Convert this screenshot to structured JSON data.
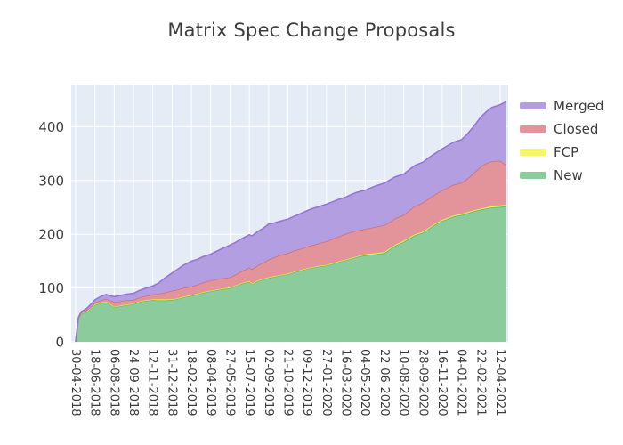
{
  "title": "Matrix Spec Change Proposals",
  "legend": {
    "position": "right",
    "items": [
      {
        "label": "Merged",
        "color": "#b29ee0",
        "line_color": "#9377d6"
      },
      {
        "label": "Closed",
        "color": "#e2949a",
        "line_color": "#d0707a"
      },
      {
        "label": "FCP",
        "color": "#f6f66b",
        "line_color": "#e8e838"
      },
      {
        "label": "New",
        "color": "#8bcb9c",
        "line_color": "#57b87b"
      }
    ]
  },
  "chart_data": {
    "type": "area",
    "stacked": true,
    "title": "Matrix Spec Change Proposals",
    "xlabel": "",
    "ylabel": "",
    "grid": true,
    "plot_bg": "#e5ecf6",
    "grid_color": "#ffffff",
    "tick_color": "#3b3b3b",
    "legend_position": "right",
    "y_ticks": [
      0,
      100,
      200,
      300,
      400
    ],
    "y_range": [
      0,
      478
    ],
    "x_tick_rotation": 90,
    "x_tick_labels": [
      "30-04-2018",
      "18-06-2018",
      "06-08-2018",
      "24-09-2018",
      "12-11-2018",
      "31-12-2018",
      "18-02-2019",
      "08-04-2019",
      "27-05-2019",
      "15-07-2019",
      "02-09-2019",
      "21-10-2019",
      "09-12-2019",
      "27-01-2020",
      "16-03-2020",
      "04-05-2020",
      "22-06-2020",
      "10-08-2020",
      "28-09-2020",
      "16-11-2020",
      "04-01-2021",
      "22-02-2021",
      "12-04-2021"
    ],
    "x": [
      "30-04-2018",
      "07-05-2018",
      "14-05-2018",
      "28-05-2018",
      "11-06-2018",
      "18-06-2018",
      "02-07-2018",
      "16-07-2018",
      "30-07-2018",
      "06-08-2018",
      "20-08-2018",
      "03-09-2018",
      "24-09-2018",
      "08-10-2018",
      "22-10-2018",
      "12-11-2018",
      "26-11-2018",
      "10-12-2018",
      "31-12-2018",
      "14-01-2019",
      "28-01-2019",
      "18-02-2019",
      "04-03-2019",
      "18-03-2019",
      "08-04-2019",
      "22-04-2019",
      "06-05-2019",
      "27-05-2019",
      "10-06-2019",
      "24-06-2019",
      "15-07-2019",
      "22-07-2019",
      "05-08-2019",
      "19-08-2019",
      "02-09-2019",
      "16-09-2019",
      "30-09-2019",
      "21-10-2019",
      "04-11-2019",
      "18-11-2019",
      "09-12-2019",
      "23-12-2019",
      "06-01-2020",
      "27-01-2020",
      "10-02-2020",
      "24-02-2020",
      "16-03-2020",
      "30-03-2020",
      "13-04-2020",
      "04-05-2020",
      "18-05-2020",
      "01-06-2020",
      "22-06-2020",
      "06-07-2020",
      "20-07-2020",
      "10-08-2020",
      "24-08-2020",
      "07-09-2020",
      "28-09-2020",
      "12-10-2020",
      "26-10-2020",
      "16-11-2020",
      "30-11-2020",
      "14-12-2020",
      "04-01-2021",
      "18-01-2021",
      "01-02-2021",
      "22-02-2021",
      "08-03-2021",
      "22-03-2021",
      "12-04-2021",
      "26-04-2021"
    ],
    "series": [
      {
        "name": "New",
        "fill": "#8bcb9c",
        "line": "#57b87b",
        "values": [
          0,
          44,
          52,
          56,
          64,
          69,
          72,
          74,
          68,
          64,
          66,
          68,
          70,
          74,
          76,
          78,
          77,
          77,
          78,
          80,
          83,
          86,
          88,
          91,
          94,
          96,
          98,
          100,
          104,
          108,
          112,
          107,
          113,
          116,
          119,
          121,
          123,
          126,
          129,
          132,
          136,
          138,
          140,
          142,
          145,
          148,
          152,
          155,
          158,
          161,
          162,
          163,
          165,
          172,
          179,
          186,
          192,
          198,
          203,
          210,
          217,
          225,
          229,
          233,
          236,
          239,
          242,
          246,
          248,
          250,
          251,
          252
        ]
      },
      {
        "name": "FCP",
        "fill": "#f6f66b",
        "line": "#e8e838",
        "values": [
          0,
          0,
          1,
          1,
          1,
          1,
          1,
          1,
          1,
          1,
          1,
          1,
          1,
          1,
          1,
          1,
          2,
          2,
          1,
          1,
          1,
          1,
          1,
          1,
          1,
          1,
          1,
          1,
          1,
          1,
          1,
          1,
          1,
          1,
          1,
          1,
          1,
          1,
          1,
          1,
          1,
          1,
          1,
          1,
          1,
          1,
          1,
          1,
          1,
          2,
          2,
          2,
          2,
          2,
          2,
          2,
          2,
          2,
          2,
          2,
          2,
          2,
          2,
          2,
          2,
          2,
          2,
          2,
          2,
          3,
          3,
          3
        ]
      },
      {
        "name": "Closed",
        "fill": "#e2949a",
        "line": "#d0707a",
        "values": [
          0,
          0,
          1,
          2,
          2,
          3,
          4,
          5,
          7,
          9,
          8,
          8,
          7,
          7,
          8,
          9,
          10,
          12,
          16,
          16,
          16,
          16,
          17,
          18,
          19,
          19,
          19,
          19,
          20,
          22,
          25,
          27,
          28,
          30,
          33,
          35,
          37,
          38,
          39,
          39,
          40,
          41,
          42,
          44,
          45,
          46,
          48,
          48,
          48,
          47,
          48,
          49,
          50,
          49,
          49,
          48,
          50,
          52,
          54,
          54,
          54,
          55,
          56,
          57,
          58,
          62,
          68,
          78,
          82,
          83,
          83,
          74
        ]
      },
      {
        "name": "Merged",
        "fill": "#b29ee0",
        "line": "#9377d6",
        "values": [
          0,
          1,
          2,
          3,
          5,
          5,
          7,
          8,
          9,
          10,
          11,
          11,
          12,
          13,
          14,
          16,
          20,
          26,
          33,
          38,
          42,
          47,
          47,
          48,
          49,
          52,
          55,
          60,
          60,
          60,
          61,
          62,
          63,
          64,
          66,
          64,
          63,
          63,
          64,
          65,
          67,
          68,
          68,
          69,
          69,
          69,
          68,
          70,
          71,
          72,
          74,
          76,
          78,
          78,
          77,
          76,
          76,
          76,
          75,
          76,
          76,
          77,
          78,
          79,
          80,
          83,
          86,
          92,
          96,
          100,
          104,
          117
        ]
      }
    ]
  }
}
